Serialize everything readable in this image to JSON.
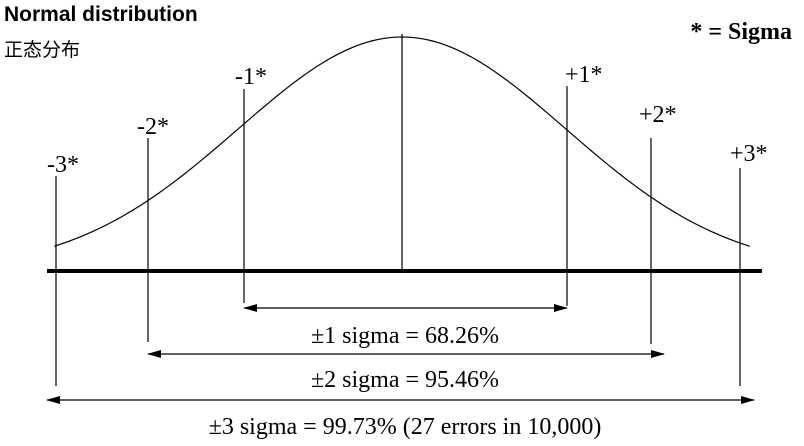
{
  "header": {
    "title": "Normal distribution",
    "subtitle": "正态分布",
    "legend": "* = Sigma"
  },
  "sigma_markers": [
    {
      "sigma": -3,
      "label": "-3*"
    },
    {
      "sigma": -2,
      "label": "-2*"
    },
    {
      "sigma": -1,
      "label": "-1*"
    },
    {
      "sigma": 1,
      "label": "+1*"
    },
    {
      "sigma": 2,
      "label": "+2*"
    },
    {
      "sigma": 3,
      "label": "+3*"
    }
  ],
  "ranges": [
    {
      "sigma": 1,
      "label": "±1 sigma = 68.26%"
    },
    {
      "sigma": 2,
      "label": "±2 sigma = 95.46%"
    },
    {
      "sigma": 3,
      "label": "±3 sigma = 99.73% (27 errors in 10,000)"
    }
  ]
}
